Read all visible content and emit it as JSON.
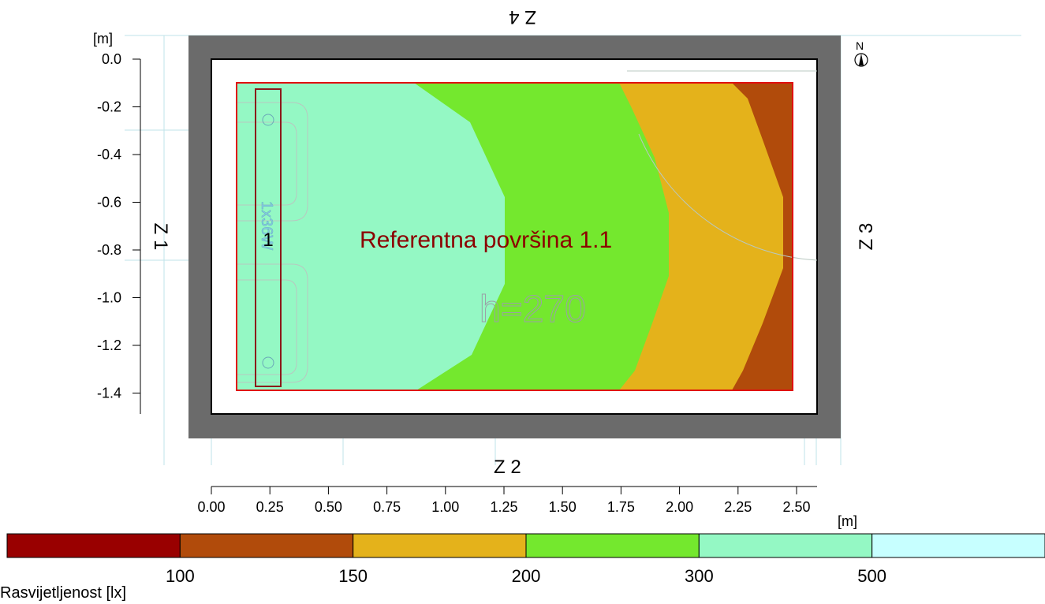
{
  "axes": {
    "y_unit": "[m]",
    "x_unit": "[m]",
    "y_ticks": [
      "0.0",
      "-0.2",
      "-0.4",
      "-0.6",
      "-0.8",
      "-1.0",
      "-1.2",
      "-1.4"
    ],
    "x_ticks": [
      "0.00",
      "0.25",
      "0.50",
      "0.75",
      "1.00",
      "1.25",
      "1.50",
      "1.75",
      "2.00",
      "2.25",
      "2.50"
    ]
  },
  "walls": {
    "top": "Z 4",
    "bottom": "Z 2",
    "left": "Z 1",
    "right": "Z 3"
  },
  "compass": "N",
  "surface": {
    "name": "Referentna površina 1.1",
    "height": "h=270"
  },
  "luminaire": {
    "number": "1",
    "label": "1x36W"
  },
  "legend": {
    "title": "Rasvijetljenost [lx]",
    "colors": [
      "#990000",
      "#b14b0b",
      "#e4b21b",
      "#74e82e",
      "#94f8c4",
      "#c7ffff"
    ],
    "ticks": [
      "100",
      "150",
      "200",
      "300",
      "500"
    ]
  }
}
